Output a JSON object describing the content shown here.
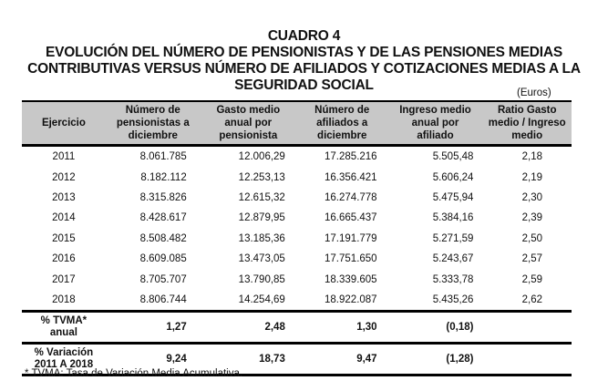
{
  "header": {
    "title": "CUADRO 4",
    "subtitle_lines": [
      "EVOLUCIÓN DEL NÚMERO DE PENSIONISTAS Y DE LAS PENSIONES MEDIAS",
      "CONTRIBUTIVAS VERSUS NÚMERO DE AFILIADOS Y COTIZACIONES MEDIAS A LA",
      "SEGURIDAD SOCIAL"
    ],
    "units": "(Euros)"
  },
  "table": {
    "columns": [
      "Ejercicio",
      "Número de pensionistas a diciembre",
      "Gasto medio anual por pensionista",
      "Número de afiliados a diciembre",
      "Ingreso medio anual por afiliado",
      "Ratio Gasto medio / Ingreso medio"
    ],
    "column_lines": [
      [
        "Ejercicio"
      ],
      [
        "Número de",
        "pensionistas a",
        "diciembre"
      ],
      [
        "Gasto medio",
        "anual por",
        "pensionista"
      ],
      [
        "Número de",
        "afiliados a",
        "diciembre"
      ],
      [
        "Ingreso medio",
        "anual por",
        "afiliado"
      ],
      [
        "Ratio Gasto",
        "medio / Ingreso",
        "medio"
      ]
    ],
    "rows": [
      {
        "year": "2011",
        "pensionistas": "8.061.785",
        "gasto": "12.006,29",
        "afiliados": "17.285.216",
        "ingreso": "5.505,48",
        "ratio": "2,18"
      },
      {
        "year": "2012",
        "pensionistas": "8.182.112",
        "gasto": "12.253,13",
        "afiliados": "16.356.421",
        "ingreso": "5.606,24",
        "ratio": "2,19"
      },
      {
        "year": "2013",
        "pensionistas": "8.315.826",
        "gasto": "12.615,32",
        "afiliados": "16.274.778",
        "ingreso": "5.475,94",
        "ratio": "2,30"
      },
      {
        "year": "2014",
        "pensionistas": "8.428.617",
        "gasto": "12.879,95",
        "afiliados": "16.665.437",
        "ingreso": "5.384,16",
        "ratio": "2,39"
      },
      {
        "year": "2015",
        "pensionistas": "8.508.482",
        "gasto": "13.185,36",
        "afiliados": "17.191.779",
        "ingreso": "5.271,59",
        "ratio": "2,50"
      },
      {
        "year": "2016",
        "pensionistas": "8.609.085",
        "gasto": "13.473,05",
        "afiliados": "17.751.650",
        "ingreso": "5.243,67",
        "ratio": "2,57"
      },
      {
        "year": "2017",
        "pensionistas": "8.705.707",
        "gasto": "13.790,85",
        "afiliados": "18.339.605",
        "ingreso": "5.333,78",
        "ratio": "2,59"
      },
      {
        "year": "2018",
        "pensionistas": "8.806.744",
        "gasto": "14.254,69",
        "afiliados": "18.922.087",
        "ingreso": "5.435,26",
        "ratio": "2,62"
      }
    ],
    "summary": [
      {
        "label_line1": "% TVMA*",
        "label_line2": "anual",
        "pensionistas": "1,27",
        "gasto": "2,48",
        "afiliados": "1,30",
        "ingreso": "(0,18)",
        "ratio": ""
      },
      {
        "label_line1": "% Variación",
        "label_line2": "2011 A 2018",
        "pensionistas": "9,24",
        "gasto": "18,73",
        "afiliados": "9,47",
        "ingreso": "(1,28)",
        "ratio": ""
      }
    ]
  },
  "footnote": "* TVMA: Tasa de Variación Media Acumulativa.",
  "colors": {
    "header_background": "#c8c8c8",
    "rule": "#000000",
    "text": "#111111"
  }
}
